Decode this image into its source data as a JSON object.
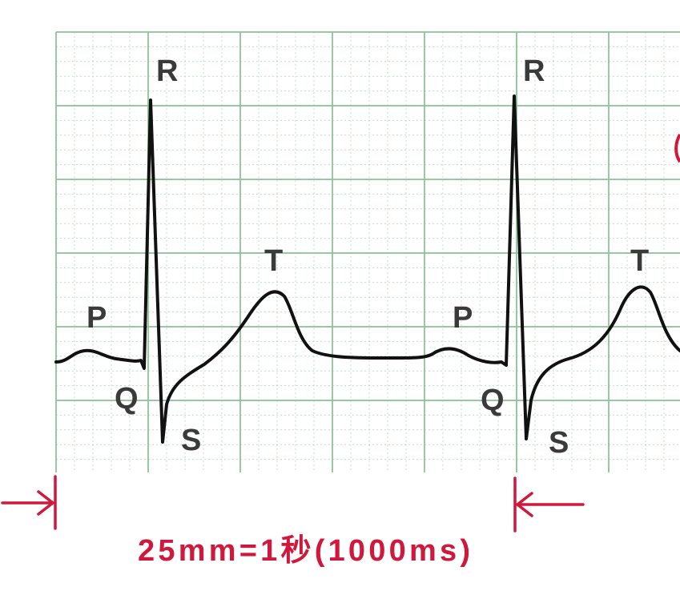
{
  "labels": {
    "beat1": {
      "p": "P",
      "q": "Q",
      "r": "R",
      "s": "S",
      "t": "T"
    },
    "beat2": {
      "p": "P",
      "q": "Q",
      "r": "R",
      "s": "S",
      "t": "T"
    }
  },
  "caption": "25mm=1秒(1000ms)",
  "colors": {
    "grid": "#8fc39a",
    "trace": "#111111",
    "annotation": "#d0183c",
    "labels": "#3a3a3a"
  }
}
